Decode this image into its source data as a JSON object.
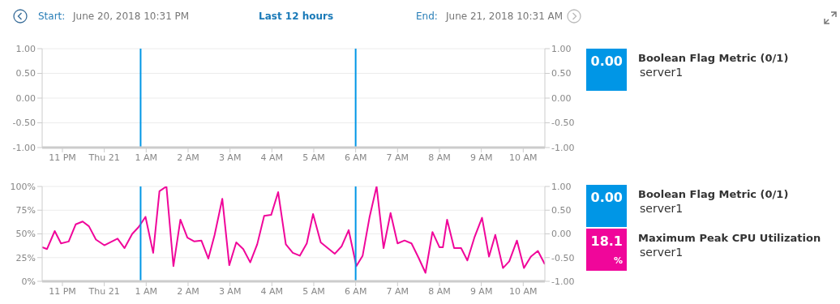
{
  "chart_data": [
    {
      "type": "line",
      "title": "Last 12 hours",
      "annotations": [
        "Start:",
        "June 20, 2018 10:31 PM",
        "End:",
        "June 21, 2018 10:31 AM",
        "0.00",
        "Boolean Flag Metric (0/1)",
        "server1"
      ],
      "xlim": [
        "2018-06-20T22:31",
        "2018-06-21T10:31"
      ],
      "xticks": [
        {
          "value": "2018-06-20T23:00",
          "label": "11 PM"
        },
        {
          "value": "2018-06-21T00:00",
          "label": "Thu 21"
        },
        {
          "value": "2018-06-21T01:00",
          "label": "1 AM"
        },
        {
          "value": "2018-06-21T02:00",
          "label": "2 AM"
        },
        {
          "value": "2018-06-21T03:00",
          "label": "3 AM"
        },
        {
          "value": "2018-06-21T04:00",
          "label": "4 AM"
        },
        {
          "value": "2018-06-21T05:00",
          "label": "5 AM"
        },
        {
          "value": "2018-06-21T06:00",
          "label": "6 AM"
        },
        {
          "value": "2018-06-21T07:00",
          "label": "7 AM"
        },
        {
          "value": "2018-06-21T08:00",
          "label": "8 AM"
        },
        {
          "value": "2018-06-21T09:00",
          "label": "9 AM"
        },
        {
          "value": "2018-06-21T10:00",
          "label": "10 AM"
        }
      ],
      "ylim": [
        -1,
        1
      ],
      "yticks": [
        {
          "value": -1,
          "label": "-1.00"
        },
        {
          "value": -0.5,
          "label": "-0.50"
        },
        {
          "value": 0,
          "label": "0.00"
        },
        {
          "value": 0.5,
          "label": "0.50"
        },
        {
          "value": 1,
          "label": "1.00"
        }
      ],
      "y2lim": [
        -1,
        1
      ],
      "y2ticks": [
        {
          "value": -1,
          "label": "-1.00"
        },
        {
          "value": -0.5,
          "label": "-0.50"
        },
        {
          "value": 0,
          "label": "0.00"
        },
        {
          "value": 0.5,
          "label": "0.50"
        },
        {
          "value": 1,
          "label": "1.00"
        }
      ],
      "ref_lines": [
        {
          "axis": "x",
          "value": "2018-06-21T00:52",
          "color": "#0096e6"
        },
        {
          "axis": "x",
          "value": "2018-06-21T06:00",
          "color": "#0096e6"
        }
      ],
      "grid": "y"
    },
    {
      "type": "line",
      "annotations": [
        "0.00",
        "Boolean Flag Metric (0/1)",
        "server1",
        "18.1",
        "%",
        "server1"
      ],
      "x": [
        "2018-06-20T22:31",
        "2018-06-20T22:38",
        "2018-06-20T22:49",
        "2018-06-20T22:58",
        "2018-06-20T23:09",
        "2018-06-20T23:19",
        "2018-06-20T23:29",
        "2018-06-20T23:38",
        "2018-06-20T23:48",
        "2018-06-21T00:00",
        "2018-06-21T00:08",
        "2018-06-21T00:19",
        "2018-06-21T00:29",
        "2018-06-21T00:40",
        "2018-06-21T00:49",
        "2018-06-21T00:59",
        "2018-06-21T01:10",
        "2018-06-21T01:19",
        "2018-06-21T01:29",
        "2018-06-21T01:39",
        "2018-06-21T01:49",
        "2018-06-21T01:59",
        "2018-06-21T02:09",
        "2018-06-21T02:19",
        "2018-06-21T02:29",
        "2018-06-21T02:38",
        "2018-06-21T02:49",
        "2018-06-21T02:59",
        "2018-06-21T03:09",
        "2018-06-21T03:19",
        "2018-06-21T03:29",
        "2018-06-21T03:39",
        "2018-06-21T03:49",
        "2018-06-21T03:59",
        "2018-06-21T04:09",
        "2018-06-21T04:20",
        "2018-06-21T04:30",
        "2018-06-21T04:40",
        "2018-06-21T04:50",
        "2018-06-21T04:59",
        "2018-06-21T05:10",
        "2018-06-21T05:20",
        "2018-06-21T05:30",
        "2018-06-21T05:40",
        "2018-06-21T05:50",
        "2018-06-21T06:01",
        "2018-06-21T06:10",
        "2018-06-21T06:20",
        "2018-06-21T06:30",
        "2018-06-21T06:40",
        "2018-06-21T06:50",
        "2018-06-21T07:00",
        "2018-06-21T07:10",
        "2018-06-21T07:20",
        "2018-06-21T07:30",
        "2018-06-21T07:40",
        "2018-06-21T07:50",
        "2018-06-21T08:00",
        "2018-06-21T08:05",
        "2018-06-21T08:11",
        "2018-06-21T08:21",
        "2018-06-21T08:31",
        "2018-06-21T08:40",
        "2018-06-21T08:50",
        "2018-06-21T09:01",
        "2018-06-21T09:11",
        "2018-06-21T09:20",
        "2018-06-21T09:31",
        "2018-06-21T09:40",
        "2018-06-21T09:51",
        "2018-06-21T10:01",
        "2018-06-21T10:11",
        "2018-06-21T10:21",
        "2018-06-21T10:31"
      ],
      "series": [
        {
          "name": "Maximum Peak CPU Utilization",
          "color": "#f0069a",
          "values": [
            36,
            34,
            53,
            40,
            42,
            60,
            63,
            58,
            44,
            38,
            41,
            45,
            35,
            50,
            57,
            68,
            30,
            95,
            100,
            16,
            65,
            46,
            42,
            43,
            24,
            49,
            87,
            17,
            41,
            34,
            20,
            39,
            69,
            70,
            94,
            39,
            30,
            27,
            40,
            71,
            41,
            35,
            29,
            37,
            54,
            16,
            27,
            68,
            100,
            35,
            72,
            40,
            43,
            40,
            25,
            9,
            52,
            36,
            36,
            65,
            35,
            35,
            22,
            46,
            67,
            26,
            49,
            14,
            21,
            43,
            14,
            26,
            32,
            18
          ]
        }
      ],
      "xlim": [
        "2018-06-20T22:31",
        "2018-06-21T10:31"
      ],
      "xticks": [
        {
          "value": "2018-06-20T23:00",
          "label": "11 PM"
        },
        {
          "value": "2018-06-21T00:00",
          "label": "Thu 21"
        },
        {
          "value": "2018-06-21T01:00",
          "label": "1 AM"
        },
        {
          "value": "2018-06-21T02:00",
          "label": "2 AM"
        },
        {
          "value": "2018-06-21T03:00",
          "label": "3 AM"
        },
        {
          "value": "2018-06-21T04:00",
          "label": "4 AM"
        },
        {
          "value": "2018-06-21T05:00",
          "label": "5 AM"
        },
        {
          "value": "2018-06-21T06:00",
          "label": "6 AM"
        },
        {
          "value": "2018-06-21T07:00",
          "label": "7 AM"
        },
        {
          "value": "2018-06-21T08:00",
          "label": "8 AM"
        },
        {
          "value": "2018-06-21T09:00",
          "label": "9 AM"
        },
        {
          "value": "2018-06-21T10:00",
          "label": "10 AM"
        }
      ],
      "ylim": [
        0,
        100
      ],
      "yticks": [
        {
          "value": 0,
          "label": "0%"
        },
        {
          "value": 25,
          "label": "25%"
        },
        {
          "value": 50,
          "label": "50%"
        },
        {
          "value": 75,
          "label": "75%"
        },
        {
          "value": 100,
          "label": "100%"
        }
      ],
      "y2lim": [
        -1,
        1
      ],
      "y2ticks": [
        {
          "value": -1,
          "label": "-1.00"
        },
        {
          "value": -0.5,
          "label": "-0.50"
        },
        {
          "value": 0,
          "label": "0.00"
        },
        {
          "value": 0.5,
          "label": "0.50"
        },
        {
          "value": 1,
          "label": "1.00"
        }
      ],
      "ref_lines": [
        {
          "axis": "x",
          "value": "2018-06-21T00:52",
          "color": "#0096e6"
        },
        {
          "axis": "x",
          "value": "2018-06-21T06:00",
          "color": "#0096e6"
        }
      ],
      "grid": "y",
      "legend": "right",
      "marker": "none",
      "line_style": "solid"
    }
  ]
}
